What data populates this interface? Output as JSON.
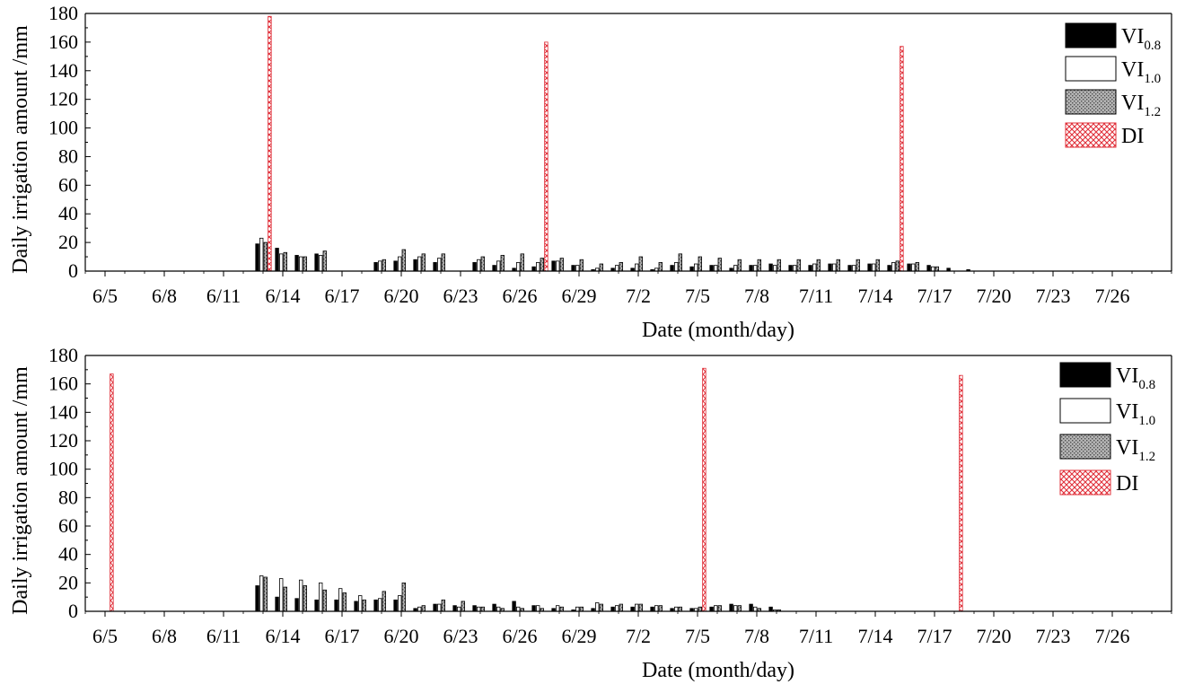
{
  "chart_data": [
    {
      "type": "bar",
      "xlabel": "Date (month/day)",
      "ylabel": "Daily irrigation amount /mm",
      "ylim": [
        0,
        180
      ],
      "yticks": [
        0,
        20,
        40,
        60,
        80,
        100,
        120,
        140,
        160,
        180
      ],
      "x_tick_labels": [
        "6/5",
        "6/8",
        "6/11",
        "6/14",
        "6/17",
        "6/20",
        "6/23",
        "6/26",
        "6/29",
        "7/2",
        "7/5",
        "7/8",
        "7/11",
        "7/14",
        "7/17",
        "7/20",
        "7/23",
        "7/26"
      ],
      "x_tick_dates": [
        "6/5",
        "6/8",
        "6/11",
        "6/14",
        "6/17",
        "6/20",
        "6/23",
        "6/26",
        "6/29",
        "7/2",
        "7/5",
        "7/8",
        "7/11",
        "7/14",
        "7/17",
        "7/20",
        "7/23",
        "7/26"
      ],
      "x_range": [
        "6/4",
        "7/29"
      ],
      "grid": false,
      "legend_position": "top-right",
      "legend": [
        {
          "base": "VI",
          "sub": "0.8",
          "color": "#000000",
          "pattern": "solid"
        },
        {
          "base": "VI",
          "sub": "1.0",
          "color": "#ffffff",
          "pattern": "none"
        },
        {
          "base": "VI",
          "sub": "1.2",
          "color": "#a0a0a0",
          "pattern": "stipple"
        },
        {
          "base": "DI",
          "sub": "",
          "color": "#e0303a",
          "pattern": "crosshatch"
        }
      ],
      "series": [
        {
          "name": "VI0.8",
          "points": [
            [
              "6/13",
              19
            ],
            [
              "6/14",
              16
            ],
            [
              "6/15",
              11
            ],
            [
              "6/16",
              12
            ],
            [
              "6/19",
              6
            ],
            [
              "6/20",
              7
            ],
            [
              "6/21",
              8
            ],
            [
              "6/22",
              6
            ],
            [
              "6/24",
              6
            ],
            [
              "6/25",
              4
            ],
            [
              "6/26",
              2
            ],
            [
              "6/27",
              3
            ],
            [
              "6/28",
              7
            ],
            [
              "6/29",
              4
            ],
            [
              "6/30",
              1
            ],
            [
              "7/1",
              2
            ],
            [
              "7/2",
              2
            ],
            [
              "7/3",
              1
            ],
            [
              "7/4",
              4
            ],
            [
              "7/5",
              3
            ],
            [
              "7/6",
              4
            ],
            [
              "7/7",
              2
            ],
            [
              "7/8",
              4
            ],
            [
              "7/9",
              5
            ],
            [
              "7/10",
              4
            ],
            [
              "7/11",
              4
            ],
            [
              "7/12",
              5
            ],
            [
              "7/13",
              4
            ],
            [
              "7/14",
              5
            ],
            [
              "7/15",
              4
            ],
            [
              "7/16",
              5
            ],
            [
              "7/17",
              4
            ],
            [
              "7/18",
              2
            ],
            [
              "7/19",
              1
            ]
          ]
        },
        {
          "name": "VI1.0",
          "points": [
            [
              "6/13",
              23
            ],
            [
              "6/14",
              12
            ],
            [
              "6/15",
              10
            ],
            [
              "6/16",
              11
            ],
            [
              "6/19",
              7
            ],
            [
              "6/20",
              10
            ],
            [
              "6/21",
              10
            ],
            [
              "6/22",
              9
            ],
            [
              "6/24",
              8
            ],
            [
              "6/25",
              7
            ],
            [
              "6/26",
              6
            ],
            [
              "6/27",
              6
            ],
            [
              "6/28",
              7
            ],
            [
              "6/29",
              4
            ],
            [
              "6/30",
              2
            ],
            [
              "7/1",
              4
            ],
            [
              "7/2",
              5
            ],
            [
              "7/3",
              2
            ],
            [
              "7/4",
              6
            ],
            [
              "7/5",
              5
            ],
            [
              "7/6",
              4
            ],
            [
              "7/7",
              4
            ],
            [
              "7/8",
              4
            ],
            [
              "7/9",
              4
            ],
            [
              "7/10",
              4
            ],
            [
              "7/11",
              5
            ],
            [
              "7/12",
              5
            ],
            [
              "7/13",
              4
            ],
            [
              "7/14",
              5
            ],
            [
              "7/15",
              6
            ],
            [
              "7/16",
              5
            ],
            [
              "7/17",
              3
            ]
          ]
        },
        {
          "name": "VI1.2",
          "points": [
            [
              "6/13",
              20
            ],
            [
              "6/14",
              13
            ],
            [
              "6/15",
              10
            ],
            [
              "6/16",
              14
            ],
            [
              "6/19",
              8
            ],
            [
              "6/20",
              15
            ],
            [
              "6/21",
              12
            ],
            [
              "6/22",
              12
            ],
            [
              "6/24",
              10
            ],
            [
              "6/25",
              11
            ],
            [
              "6/26",
              12
            ],
            [
              "6/27",
              9
            ],
            [
              "6/28",
              9
            ],
            [
              "6/29",
              8
            ],
            [
              "6/30",
              5
            ],
            [
              "7/1",
              6
            ],
            [
              "7/2",
              10
            ],
            [
              "7/3",
              6
            ],
            [
              "7/4",
              12
            ],
            [
              "7/5",
              10
            ],
            [
              "7/6",
              9
            ],
            [
              "7/7",
              8
            ],
            [
              "7/8",
              8
            ],
            [
              "7/9",
              8
            ],
            [
              "7/10",
              8
            ],
            [
              "7/11",
              8
            ],
            [
              "7/12",
              8
            ],
            [
              "7/13",
              8
            ],
            [
              "7/14",
              8
            ],
            [
              "7/15",
              7
            ],
            [
              "7/16",
              6
            ],
            [
              "7/17",
              3
            ]
          ]
        },
        {
          "name": "DI",
          "points": [
            [
              "6/13",
              178
            ],
            [
              "6/27",
              160
            ],
            [
              "7/15",
              157
            ]
          ]
        }
      ]
    },
    {
      "type": "bar",
      "xlabel": "Date (month/day)",
      "ylabel": "Daily irrigation amount /mm",
      "ylim": [
        0,
        180
      ],
      "yticks": [
        0,
        20,
        40,
        60,
        80,
        100,
        120,
        140,
        160,
        180
      ],
      "x_tick_labels": [
        "6/5",
        "6/8",
        "6/11",
        "6/14",
        "6/17",
        "6/20",
        "6/23",
        "6/26",
        "6/29",
        "7/2",
        "7/5",
        "7/8",
        "7/11",
        "7/14",
        "7/17",
        "7/20",
        "7/23",
        "7/26"
      ],
      "x_tick_dates": [
        "6/5",
        "6/8",
        "6/11",
        "6/14",
        "6/17",
        "6/20",
        "6/23",
        "6/26",
        "6/29",
        "7/2",
        "7/5",
        "7/8",
        "7/11",
        "7/14",
        "7/17",
        "7/20",
        "7/23",
        "7/26"
      ],
      "x_range": [
        "6/4",
        "7/29"
      ],
      "grid": false,
      "legend_position": "top-right",
      "legend": [
        {
          "base": "VI",
          "sub": "0.8",
          "color": "#000000",
          "pattern": "solid"
        },
        {
          "base": "VI",
          "sub": "1.0",
          "color": "#ffffff",
          "pattern": "none"
        },
        {
          "base": "VI",
          "sub": "1.2",
          "color": "#a0a0a0",
          "pattern": "stipple"
        },
        {
          "base": "DI",
          "sub": "",
          "color": "#e0303a",
          "pattern": "crosshatch"
        }
      ],
      "series": [
        {
          "name": "VI0.8",
          "points": [
            [
              "6/13",
              18
            ],
            [
              "6/14",
              10
            ],
            [
              "6/15",
              9
            ],
            [
              "6/16",
              8
            ],
            [
              "6/17",
              8
            ],
            [
              "6/18",
              7
            ],
            [
              "6/19",
              8
            ],
            [
              "6/20",
              8
            ],
            [
              "6/21",
              2
            ],
            [
              "6/22",
              5
            ],
            [
              "6/23",
              4
            ],
            [
              "6/24",
              4
            ],
            [
              "6/25",
              5
            ],
            [
              "6/26",
              7
            ],
            [
              "6/27",
              4
            ],
            [
              "6/28",
              2
            ],
            [
              "6/29",
              1
            ],
            [
              "6/30",
              2
            ],
            [
              "7/1",
              3
            ],
            [
              "7/2",
              3
            ],
            [
              "7/3",
              3
            ],
            [
              "7/4",
              2
            ],
            [
              "7/5",
              2
            ],
            [
              "7/6",
              3
            ],
            [
              "7/7",
              5
            ],
            [
              "7/8",
              5
            ],
            [
              "7/9",
              3
            ]
          ]
        },
        {
          "name": "VI1.0",
          "points": [
            [
              "6/13",
              25
            ],
            [
              "6/14",
              23
            ],
            [
              "6/15",
              22
            ],
            [
              "6/16",
              20
            ],
            [
              "6/17",
              16
            ],
            [
              "6/18",
              11
            ],
            [
              "6/19",
              9
            ],
            [
              "6/20",
              11
            ],
            [
              "6/21",
              3
            ],
            [
              "6/22",
              5
            ],
            [
              "6/23",
              3
            ],
            [
              "6/24",
              3
            ],
            [
              "6/25",
              3
            ],
            [
              "6/26",
              3
            ],
            [
              "6/27",
              4
            ],
            [
              "6/28",
              4
            ],
            [
              "6/29",
              3
            ],
            [
              "6/30",
              6
            ],
            [
              "7/1",
              4
            ],
            [
              "7/2",
              5
            ],
            [
              "7/3",
              4
            ],
            [
              "7/4",
              3
            ],
            [
              "7/5",
              2
            ],
            [
              "7/6",
              4
            ],
            [
              "7/7",
              4
            ],
            [
              "7/8",
              3
            ],
            [
              "7/9",
              1
            ]
          ]
        },
        {
          "name": "VI1.2",
          "points": [
            [
              "6/13",
              24
            ],
            [
              "6/14",
              17
            ],
            [
              "6/15",
              18
            ],
            [
              "6/16",
              15
            ],
            [
              "6/17",
              13
            ],
            [
              "6/18",
              8
            ],
            [
              "6/19",
              14
            ],
            [
              "6/20",
              20
            ],
            [
              "6/21",
              4
            ],
            [
              "6/22",
              8
            ],
            [
              "6/23",
              7
            ],
            [
              "6/24",
              3
            ],
            [
              "6/25",
              2
            ],
            [
              "6/26",
              2
            ],
            [
              "6/27",
              2
            ],
            [
              "6/28",
              3
            ],
            [
              "6/29",
              3
            ],
            [
              "6/30",
              5
            ],
            [
              "7/1",
              5
            ],
            [
              "7/2",
              5
            ],
            [
              "7/3",
              4
            ],
            [
              "7/4",
              3
            ],
            [
              "7/5",
              3
            ],
            [
              "7/6",
              4
            ],
            [
              "7/7",
              4
            ],
            [
              "7/8",
              2
            ],
            [
              "7/9",
              1
            ]
          ]
        },
        {
          "name": "DI",
          "points": [
            [
              "6/5",
              167
            ],
            [
              "7/5",
              171
            ],
            [
              "7/18",
              166
            ]
          ]
        }
      ]
    }
  ]
}
